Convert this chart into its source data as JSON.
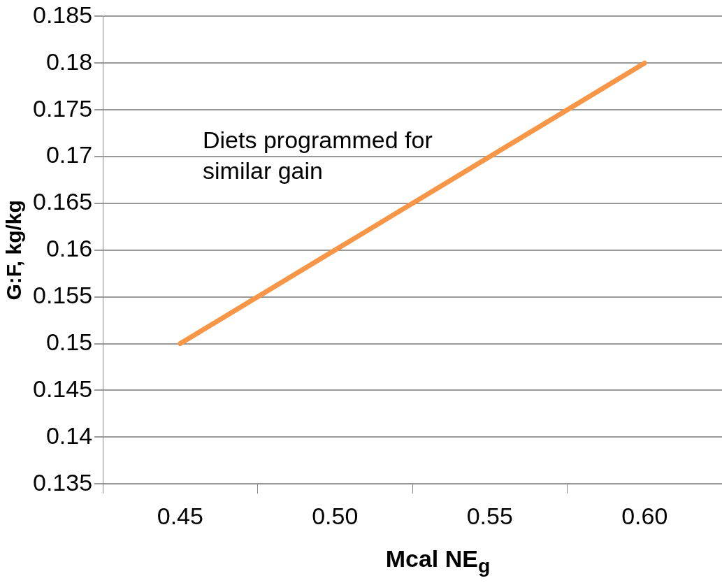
{
  "chart_data": {
    "type": "line",
    "xlabel": "Mcal NE$_{g}$",
    "ylabel": "G:F, kg/kg",
    "categories": [
      "0.45",
      "0.50",
      "0.55",
      "0.60"
    ],
    "series": [
      {
        "color": "#f79646",
        "values": [
          0.15,
          0.16,
          0.17,
          0.18
        ]
      }
    ],
    "ylim": [
      0.135,
      0.185
    ],
    "yticks": [
      0.135,
      0.14,
      0.145,
      0.15,
      0.155,
      0.16,
      0.165,
      0.17,
      0.175,
      0.18,
      0.185
    ],
    "grid": "y",
    "legend": false,
    "marker": "none",
    "line_style": "solid",
    "annotations": [
      "Diets programmed for similar gain"
    ]
  }
}
